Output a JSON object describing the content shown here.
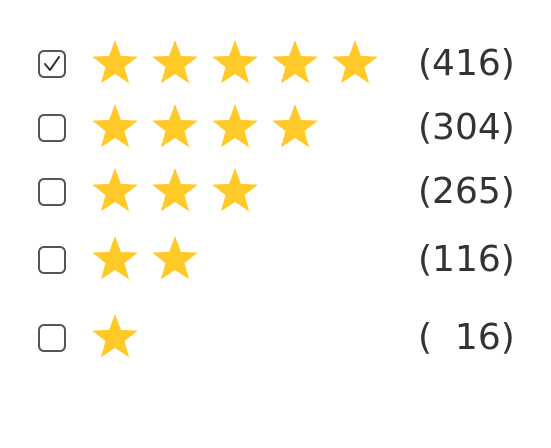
{
  "rating_filter": {
    "star_color": "#FFC928",
    "rows": [
      {
        "stars": 5,
        "count": "(416)",
        "checked": true
      },
      {
        "stars": 4,
        "count": "(304)",
        "checked": false
      },
      {
        "stars": 3,
        "count": "(265)",
        "checked": false
      },
      {
        "stars": 2,
        "count": "(116)",
        "checked": false
      },
      {
        "stars": 1,
        "count": "(  16)",
        "checked": false
      }
    ]
  }
}
